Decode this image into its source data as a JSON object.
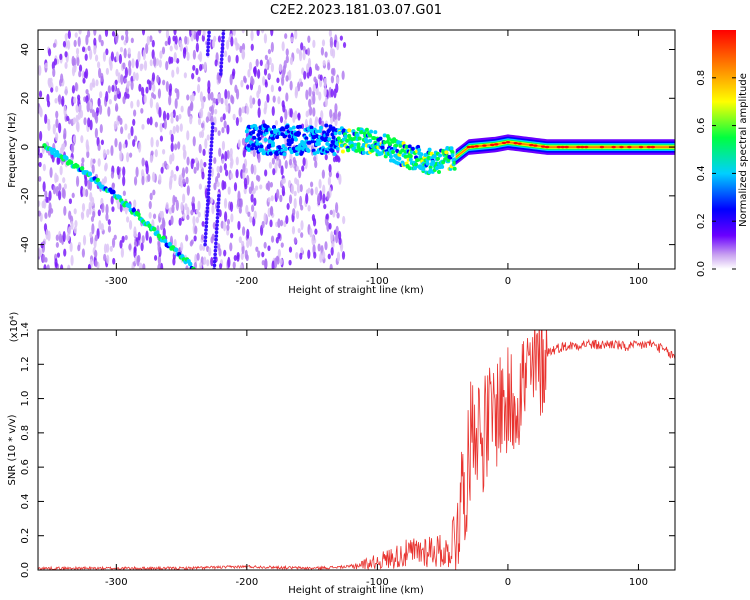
{
  "title": "C2E2.2023.181.03.07.G01",
  "chart_data": [
    {
      "type": "heatmap",
      "title": "C2E2.2023.181.03.07.G01",
      "xlabel": "Height of straight line (km)",
      "ylabel": "Frequency (Hz)",
      "xlim": [
        -360,
        128
      ],
      "ylim": [
        -50,
        48
      ],
      "xticks": [
        -300,
        -200,
        -100,
        0,
        100
      ],
      "yticks": [
        -40,
        -20,
        0,
        20,
        40
      ],
      "colorbar": {
        "label": "Normalized spectral amplitude",
        "ticks": [
          0.0,
          0.2,
          0.4,
          0.6,
          0.8
        ],
        "range": [
          0,
          1
        ],
        "colors": [
          "#ffffff",
          "#c8a0f0",
          "#6a00ff",
          "#0000ff",
          "#00d0ff",
          "#00ff40",
          "#ffff00",
          "#ff8000",
          "#ff0000"
        ]
      },
      "features": [
        {
          "name": "main ridge",
          "x": [
            -130,
            -100,
            -80,
            -60,
            -42,
            -30,
            -10,
            0,
            30,
            60,
            100,
            128
          ],
          "y": [
            3,
            2,
            -3,
            -6,
            -5,
            0,
            1,
            2,
            0,
            0,
            0,
            0
          ]
        },
        {
          "name": "diagonal streak",
          "x": [
            -355,
            -330,
            -300,
            -270,
            -250,
            -240
          ],
          "y": [
            0,
            -8,
            -20,
            -35,
            -45,
            -50
          ]
        }
      ]
    },
    {
      "type": "line",
      "xlabel": "Height of straight line (km)",
      "ylabel": "SNR (10 * v/v)",
      "y_multiplier": "(x10⁴)",
      "xlim": [
        -360,
        128
      ],
      "ylim": [
        0,
        1.4
      ],
      "xticks": [
        -300,
        -200,
        -100,
        0,
        100
      ],
      "yticks": [
        0.0,
        0.2,
        0.4,
        0.6,
        0.8,
        1.0,
        1.2,
        1.4
      ],
      "color": "#e8322e",
      "x": [
        -360,
        -300,
        -250,
        -200,
        -150,
        -120,
        -100,
        -80,
        -60,
        -45,
        -40,
        -35,
        -30,
        -27,
        -24,
        -20,
        -15,
        -10,
        -5,
        0,
        5,
        10,
        15,
        20,
        25,
        30,
        40,
        50,
        60,
        70,
        80,
        90,
        100,
        110,
        120,
        128
      ],
      "values": [
        0.01,
        0.01,
        0.01,
        0.02,
        0.01,
        0.02,
        0.05,
        0.09,
        0.12,
        0.1,
        0.25,
        0.45,
        0.6,
        0.95,
        0.85,
        0.78,
        0.85,
        0.92,
        0.98,
        0.95,
        1.0,
        1.08,
        1.12,
        1.15,
        1.22,
        1.27,
        1.3,
        1.31,
        1.32,
        1.31,
        1.32,
        1.3,
        1.31,
        1.32,
        1.28,
        1.24
      ]
    }
  ]
}
